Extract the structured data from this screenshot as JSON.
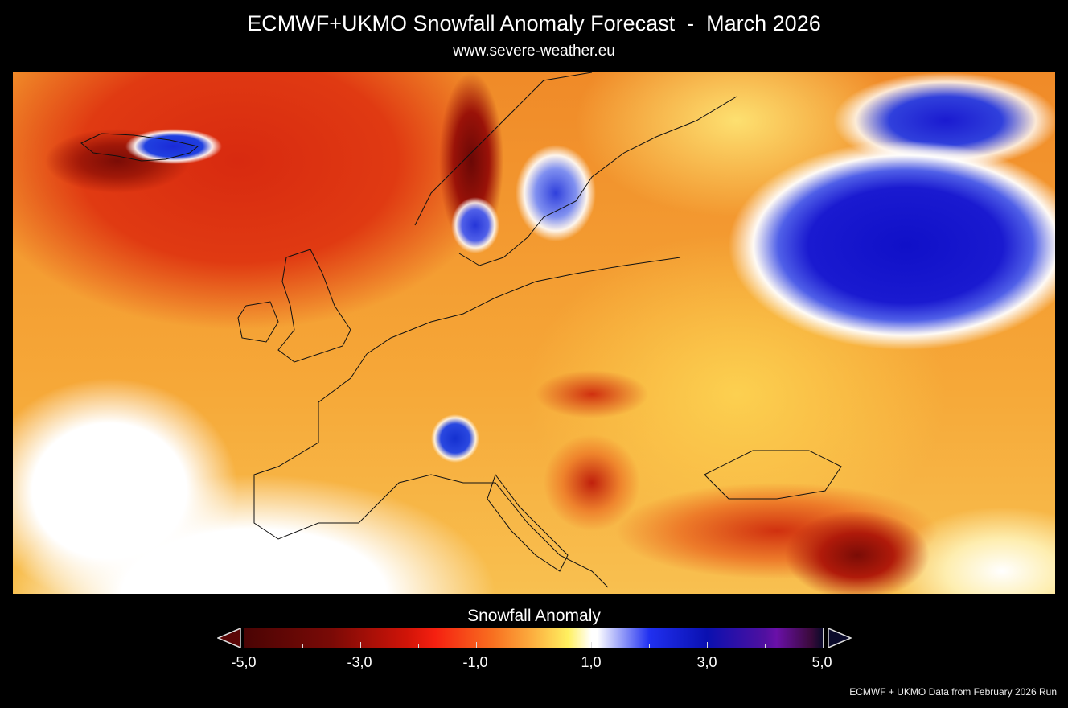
{
  "header": {
    "title": "ECMWF+UKMO Snowfall Anomaly Forecast  -  March 2026",
    "subtitle": "www.severe-weather.eu"
  },
  "map": {
    "region": "Europe",
    "colors": {
      "negative_strong": "#7a0a06",
      "negative": "#e03a12",
      "neutral": "#ffffff",
      "positive": "#1a1ad0"
    }
  },
  "colorbar": {
    "title": "Snowfall Anomaly",
    "min": -5.0,
    "max": 5.0,
    "extend": "both",
    "tick_labels": [
      "-5,0",
      "-3,0",
      "-1,0",
      "1,0",
      "3,0",
      "5,0"
    ],
    "tick_values": [
      -5,
      -3,
      -1,
      1,
      3,
      5
    ]
  },
  "footer": {
    "credit": "ECMWF + UKMO Data from February 2026 Run"
  }
}
